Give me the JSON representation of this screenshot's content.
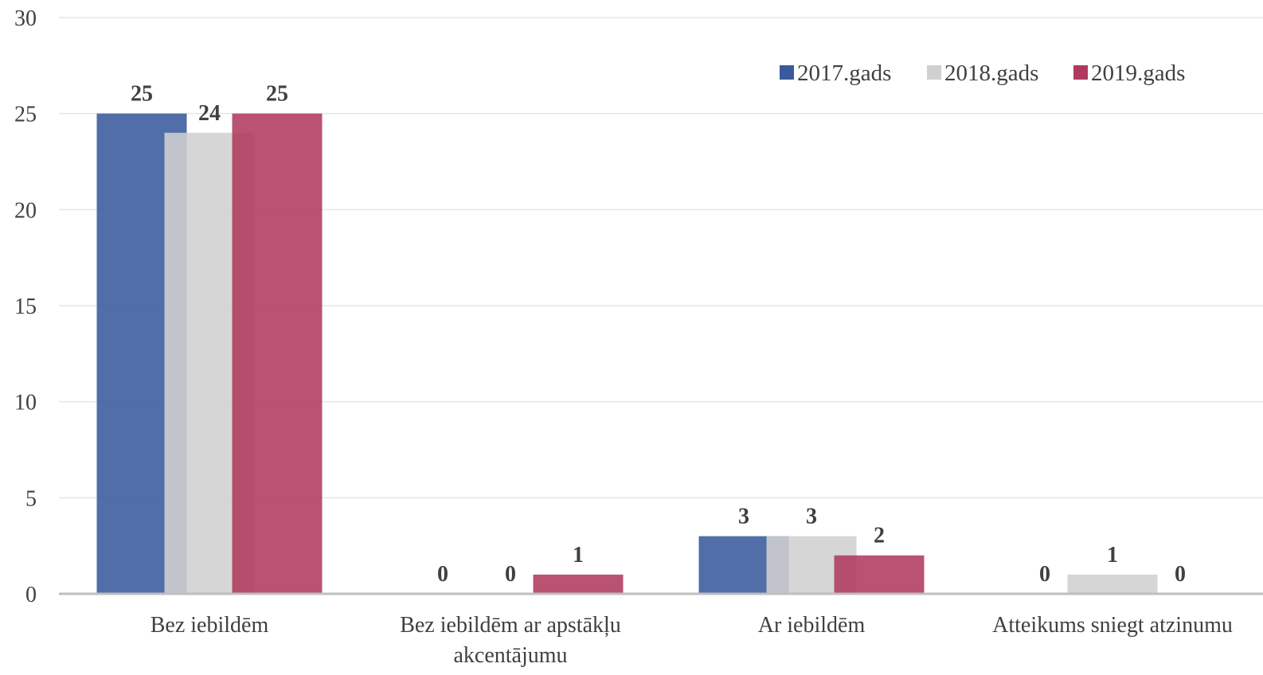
{
  "chart_data": {
    "type": "bar",
    "categories": [
      [
        "Bez iebildēm"
      ],
      [
        "Bez iebildēm ar apstākļu",
        "akcentājumu"
      ],
      [
        "Ar iebildēm"
      ],
      [
        "Atteikums sniegt atzinumu"
      ]
    ],
    "series": [
      {
        "name": "2017.gads",
        "color": "#3a5a9c",
        "values": [
          25,
          0,
          3,
          0
        ]
      },
      {
        "name": "2018.gads",
        "color": "#d0d0d0",
        "values": [
          24,
          0,
          3,
          1
        ]
      },
      {
        "name": "2019.gads",
        "color": "#b03a5f",
        "values": [
          25,
          1,
          2,
          0
        ]
      }
    ],
    "ylim": [
      0,
      30
    ],
    "yticks": [
      0,
      5,
      10,
      15,
      20,
      25,
      30
    ],
    "grid": true,
    "legend_position": "top-right",
    "title": "",
    "xlabel": "",
    "ylabel": ""
  }
}
